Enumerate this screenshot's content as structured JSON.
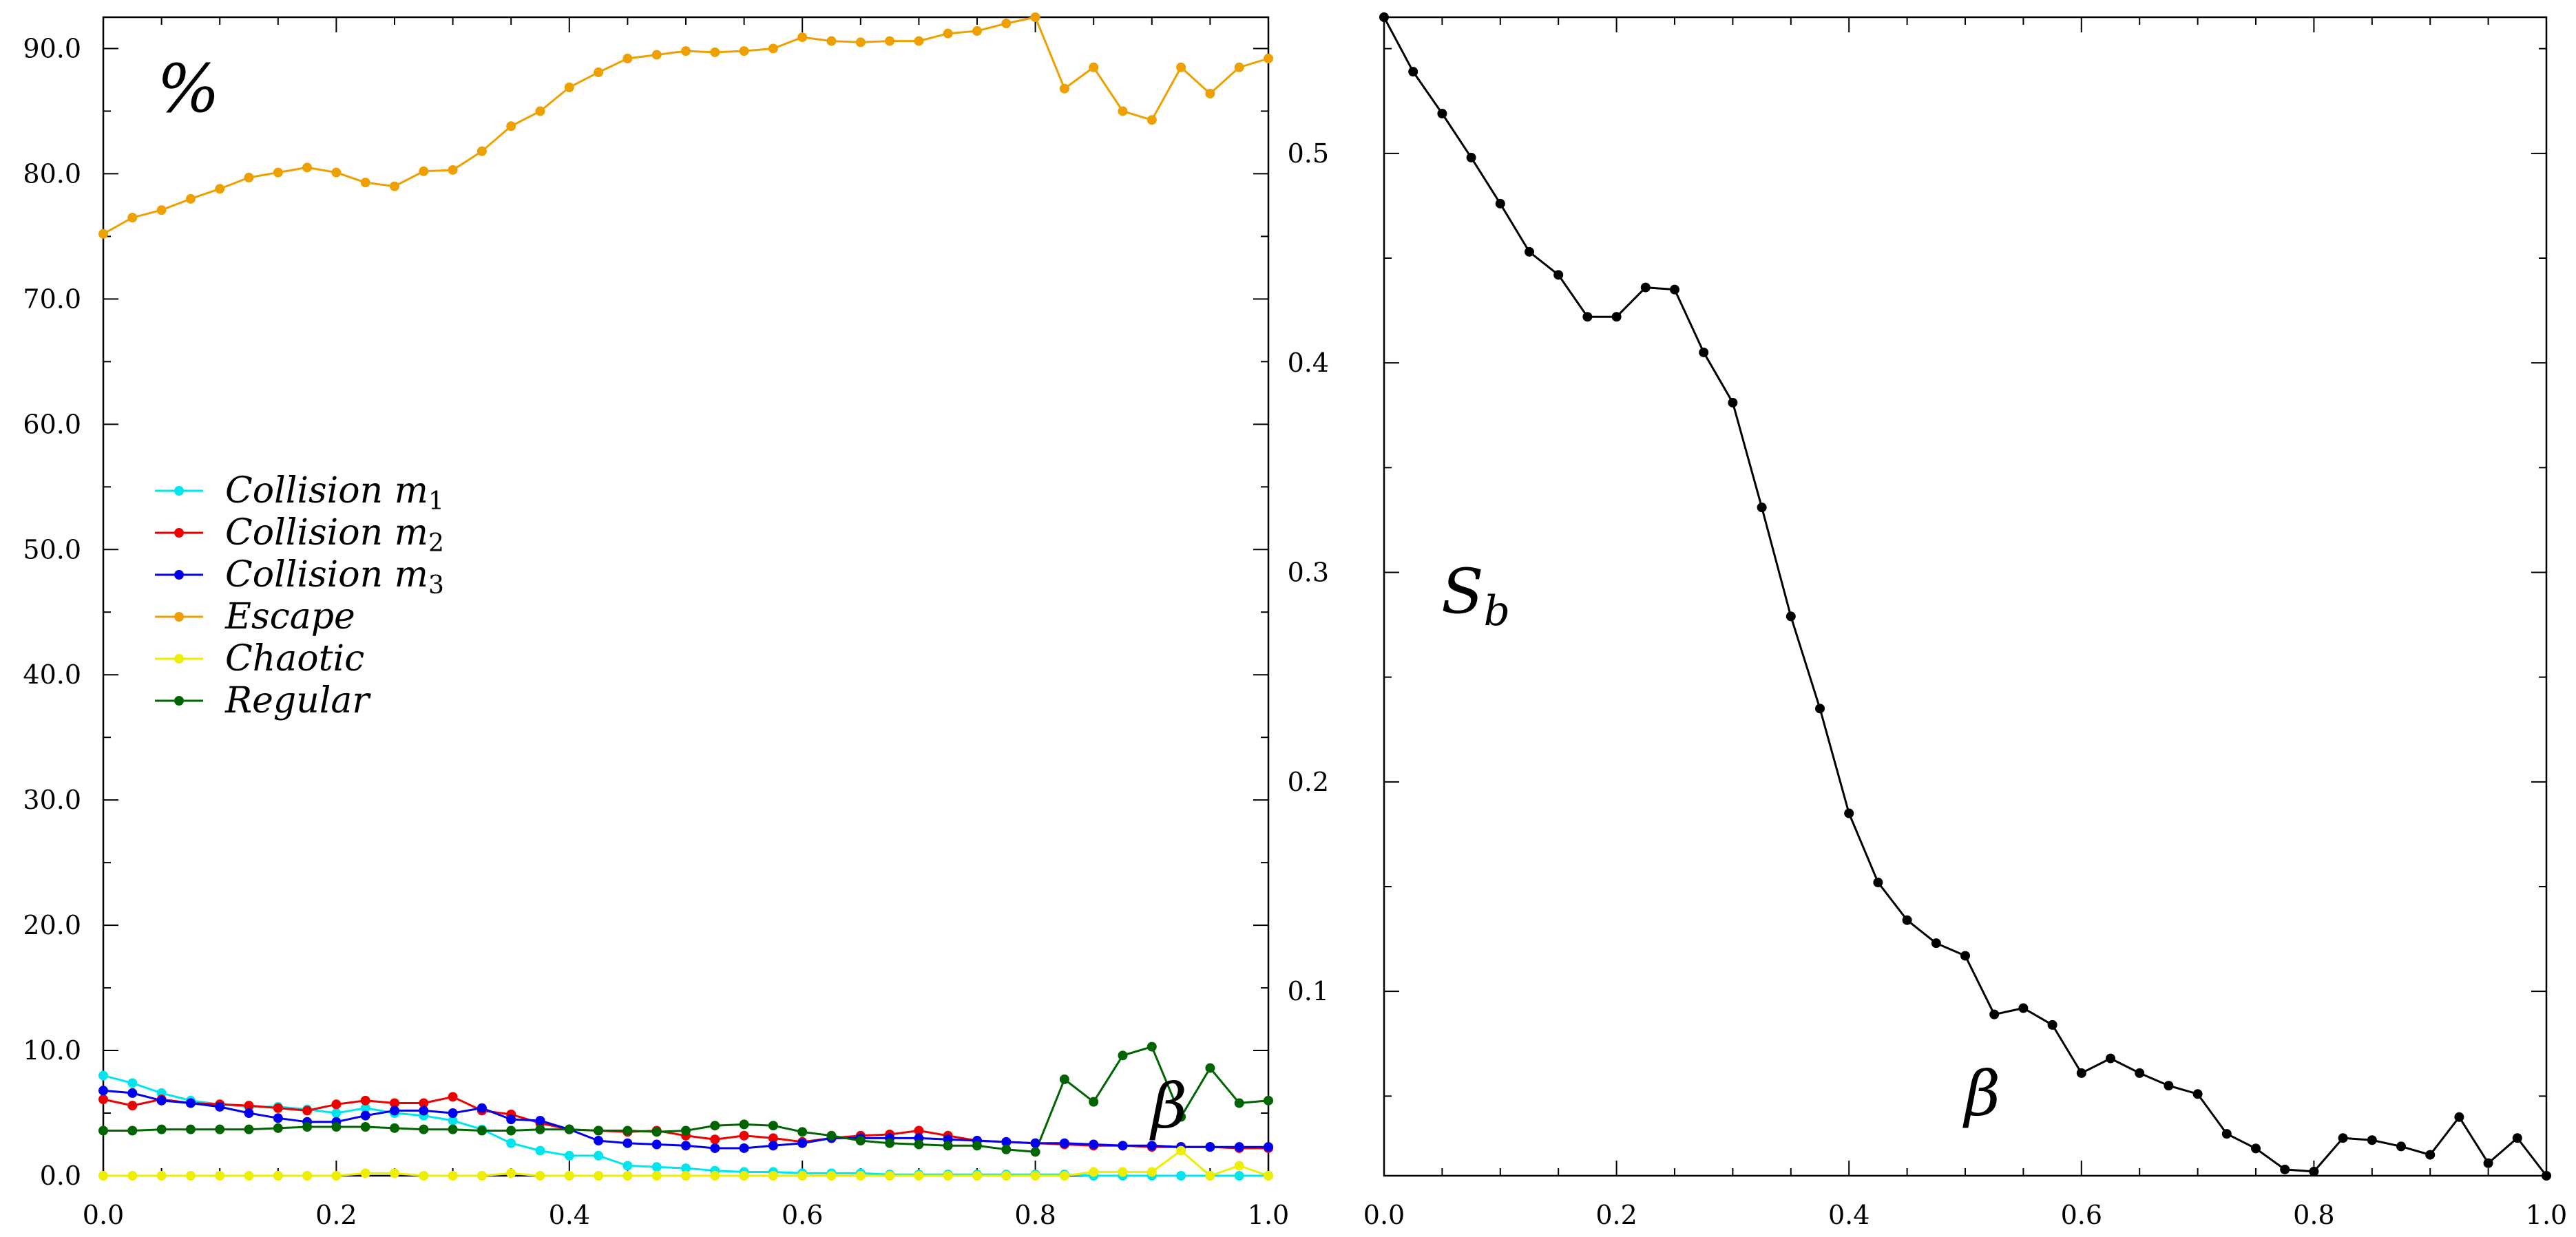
{
  "chart_data": [
    {
      "type": "line",
      "ylabel": "%",
      "xlabel": "β",
      "xlim": [
        0.0,
        1.0
      ],
      "ylim": [
        0.0,
        92.5
      ],
      "xticks": [
        "0.0",
        "0.2",
        "0.4",
        "0.6",
        "0.8",
        "1.0"
      ],
      "yticks": [
        "0.0",
        "10.0",
        "20.0",
        "30.0",
        "40.0",
        "50.0",
        "60.0",
        "70.0",
        "80.0",
        "90.0"
      ],
      "legend_position": "center-left",
      "x": [
        0.0,
        0.025,
        0.05,
        0.075,
        0.1,
        0.125,
        0.15,
        0.175,
        0.2,
        0.225,
        0.25,
        0.275,
        0.3,
        0.325,
        0.35,
        0.375,
        0.4,
        0.425,
        0.45,
        0.475,
        0.5,
        0.525,
        0.55,
        0.575,
        0.6,
        0.625,
        0.65,
        0.675,
        0.7,
        0.725,
        0.75,
        0.775,
        0.8,
        0.825,
        0.85,
        0.875,
        0.9,
        0.925,
        0.95,
        0.975,
        1.0
      ],
      "series": [
        {
          "name": "Collision m1",
          "label_main": "Collision m",
          "label_sub": "1",
          "color": "#00e5ee",
          "values": [
            8.0,
            7.4,
            6.6,
            6.0,
            5.7,
            5.5,
            5.5,
            5.3,
            5.0,
            5.4,
            5.0,
            4.8,
            4.4,
            3.7,
            2.6,
            2.0,
            1.6,
            1.6,
            0.8,
            0.7,
            0.6,
            0.4,
            0.3,
            0.3,
            0.2,
            0.2,
            0.2,
            0.1,
            0.1,
            0.1,
            0.1,
            0.1,
            0.1,
            0.1,
            0.0,
            0.0,
            0.0,
            0.0,
            0.0,
            0.0,
            0.0
          ]
        },
        {
          "name": "Collision m2",
          "label_main": "Collision m",
          "label_sub": "2",
          "color": "#ee0000",
          "values": [
            6.1,
            5.6,
            6.1,
            5.8,
            5.7,
            5.6,
            5.4,
            5.2,
            5.7,
            6.0,
            5.8,
            5.8,
            6.3,
            5.2,
            4.9,
            4.2,
            3.7,
            3.6,
            3.5,
            3.6,
            3.2,
            2.9,
            3.2,
            3.0,
            2.7,
            3.0,
            3.2,
            3.3,
            3.6,
            3.2,
            2.8,
            2.7,
            2.6,
            2.5,
            2.4,
            2.4,
            2.3,
            2.3,
            2.3,
            2.2,
            2.2
          ]
        },
        {
          "name": "Collision m3",
          "label_main": "Collision m",
          "label_sub": "3",
          "color": "#0000ee",
          "values": [
            6.8,
            6.6,
            6.0,
            5.8,
            5.5,
            5.0,
            4.6,
            4.3,
            4.3,
            4.8,
            5.2,
            5.2,
            5.0,
            5.4,
            4.5,
            4.4,
            3.7,
            2.8,
            2.6,
            2.5,
            2.4,
            2.2,
            2.2,
            2.4,
            2.6,
            3.0,
            3.0,
            3.0,
            3.0,
            2.9,
            2.8,
            2.7,
            2.6,
            2.6,
            2.5,
            2.4,
            2.4,
            2.3,
            2.3,
            2.3,
            2.3
          ]
        },
        {
          "name": "Escape",
          "label_main": "Escape",
          "label_sub": "",
          "color": "#eea000",
          "values": [
            75.2,
            76.5,
            77.1,
            78.0,
            78.8,
            79.7,
            80.1,
            80.5,
            80.1,
            79.3,
            79.0,
            80.2,
            80.3,
            81.8,
            83.8,
            85.0,
            86.9,
            88.1,
            89.2,
            89.5,
            89.8,
            89.7,
            89.8,
            90.0,
            90.9,
            90.6,
            90.5,
            90.6,
            90.6,
            91.2,
            91.4,
            92.0,
            92.5,
            86.8,
            88.5,
            85.0,
            84.3,
            88.5,
            86.4,
            88.5,
            89.2
          ]
        },
        {
          "name": "Chaotic",
          "label_main": "Chaotic",
          "label_sub": "",
          "color": "#eeee00",
          "values": [
            0.0,
            0.0,
            0.0,
            0.0,
            0.0,
            0.0,
            0.0,
            0.0,
            0.0,
            0.2,
            0.2,
            0.0,
            0.0,
            0.0,
            0.2,
            0.0,
            0.0,
            0.0,
            0.0,
            0.0,
            0.0,
            0.0,
            0.0,
            0.0,
            0.0,
            0.0,
            0.0,
            0.0,
            0.0,
            0.0,
            0.0,
            0.0,
            0.0,
            0.0,
            0.3,
            0.3,
            0.3,
            2.0,
            0.0,
            0.8,
            0.0
          ]
        },
        {
          "name": "Regular",
          "label_main": "Regular",
          "label_sub": "",
          "color": "#006400",
          "values": [
            3.6,
            3.6,
            3.7,
            3.7,
            3.7,
            3.7,
            3.8,
            3.9,
            3.9,
            3.9,
            3.8,
            3.7,
            3.7,
            3.6,
            3.6,
            3.7,
            3.7,
            3.6,
            3.6,
            3.5,
            3.6,
            4.0,
            4.1,
            4.0,
            3.5,
            3.2,
            2.8,
            2.6,
            2.5,
            2.4,
            2.4,
            2.1,
            1.9,
            7.7,
            5.9,
            9.6,
            10.3,
            4.7,
            8.6,
            5.8,
            6.0
          ]
        }
      ]
    },
    {
      "type": "line",
      "ylabel_main": "S",
      "ylabel_sub": "b",
      "xlabel": "β",
      "xlim": [
        0.0,
        1.0
      ],
      "ylim": [
        0.012,
        0.565
      ],
      "xticks": [
        "0.0",
        "0.2",
        "0.4",
        "0.6",
        "0.8",
        "1.0"
      ],
      "yticks": [
        "0.1",
        "0.2",
        "0.3",
        "0.4",
        "0.5"
      ],
      "ytick_values": [
        0.1,
        0.2,
        0.3,
        0.4,
        0.5
      ],
      "x": [
        0.0,
        0.025,
        0.05,
        0.075,
        0.1,
        0.125,
        0.15,
        0.175,
        0.2,
        0.225,
        0.25,
        0.275,
        0.3,
        0.325,
        0.35,
        0.375,
        0.4,
        0.425,
        0.45,
        0.475,
        0.5,
        0.525,
        0.55,
        0.575,
        0.6,
        0.625,
        0.65,
        0.675,
        0.7,
        0.725,
        0.75,
        0.775,
        0.8,
        0.825,
        0.85,
        0.875,
        0.9,
        0.925,
        0.95,
        0.975,
        1.0
      ],
      "series": [
        {
          "color": "#000000",
          "values": [
            0.565,
            0.539,
            0.519,
            0.498,
            0.476,
            0.453,
            0.442,
            0.422,
            0.422,
            0.436,
            0.435,
            0.405,
            0.381,
            0.331,
            0.279,
            0.235,
            0.185,
            0.152,
            0.134,
            0.123,
            0.117,
            0.089,
            0.092,
            0.084,
            0.061,
            0.068,
            0.061,
            0.055,
            0.051,
            0.032,
            0.025,
            0.015,
            0.014,
            0.03,
            0.029,
            0.026,
            0.022,
            0.04,
            0.018,
            0.03,
            0.012
          ]
        }
      ]
    }
  ]
}
